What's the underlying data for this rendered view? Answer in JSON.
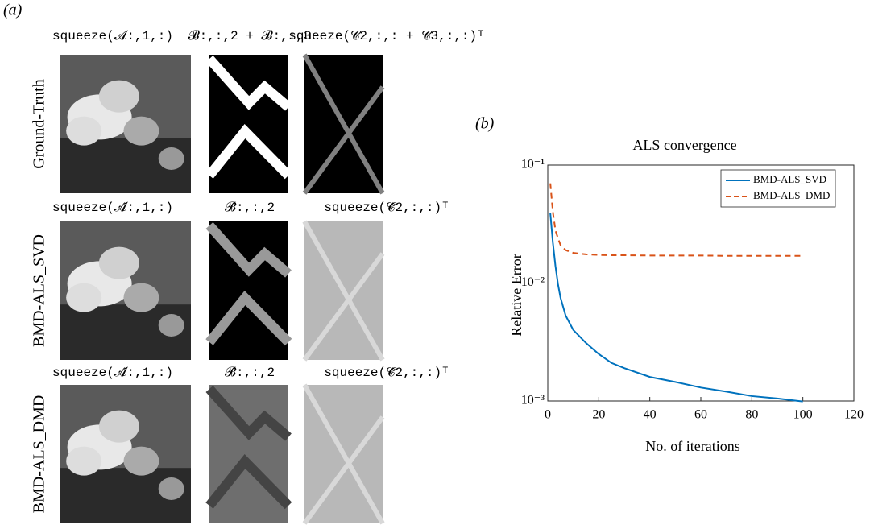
{
  "panel_a": {
    "label": "(a)",
    "rows": [
      {
        "label": "Ground-Truth",
        "headers": [
          "squeeze(𝓐:,1,:)",
          "𝓑:,:,2 + 𝓑:,:,3",
          "squeeze(𝓒2,:,: + 𝓒3,:,:)ᵀ"
        ]
      },
      {
        "label": "BMD-ALS_SVD",
        "headers": [
          "squeeze(𝓐̂:,1,:)",
          "𝓑̂:,:,2",
          "squeeze(𝓒̂2,:,:)ᵀ"
        ]
      },
      {
        "label": "BMD-ALS_DMD",
        "headers": [
          "squeeze(𝓐̂:,1,:)",
          "𝓑̂:,:,2",
          "squeeze(𝓒̂2,:,:)ᵀ"
        ]
      }
    ]
  },
  "panel_b": {
    "label": "(b)"
  },
  "chart_data": {
    "type": "line",
    "title": "ALS convergence",
    "xlabel": "No. of iterations",
    "ylabel": "Relative Error",
    "x": [
      1,
      2,
      3,
      4,
      5,
      7,
      10,
      15,
      20,
      25,
      30,
      40,
      50,
      60,
      70,
      80,
      90,
      100
    ],
    "series": [
      {
        "name": "BMD-ALS_SVD",
        "color": "#0072bd",
        "dash": false,
        "values": [
          0.039,
          0.022,
          0.014,
          0.0098,
          0.0075,
          0.0053,
          0.004,
          0.0031,
          0.0025,
          0.0021,
          0.0019,
          0.0016,
          0.00145,
          0.0013,
          0.0012,
          0.0011,
          0.00105,
          0.00099
        ]
      },
      {
        "name": "BMD-ALS_DMD",
        "color": "#d95319",
        "dash": true,
        "values": [
          0.07,
          0.04,
          0.028,
          0.024,
          0.021,
          0.019,
          0.018,
          0.0175,
          0.0173,
          0.0172,
          0.0172,
          0.0171,
          0.0171,
          0.0171,
          0.017,
          0.017,
          0.017,
          0.017
        ]
      }
    ],
    "xlim": [
      0,
      120
    ],
    "xticks": [
      0,
      20,
      40,
      60,
      80,
      100,
      120
    ],
    "ylim": [
      0.001,
      0.1
    ],
    "yscale": "log",
    "yticks": [
      {
        "value": 0.001,
        "label": "10⁻³"
      },
      {
        "value": 0.01,
        "label": "10⁻²"
      },
      {
        "value": 0.1,
        "label": "10⁻¹"
      }
    ],
    "legend": "upper right"
  }
}
